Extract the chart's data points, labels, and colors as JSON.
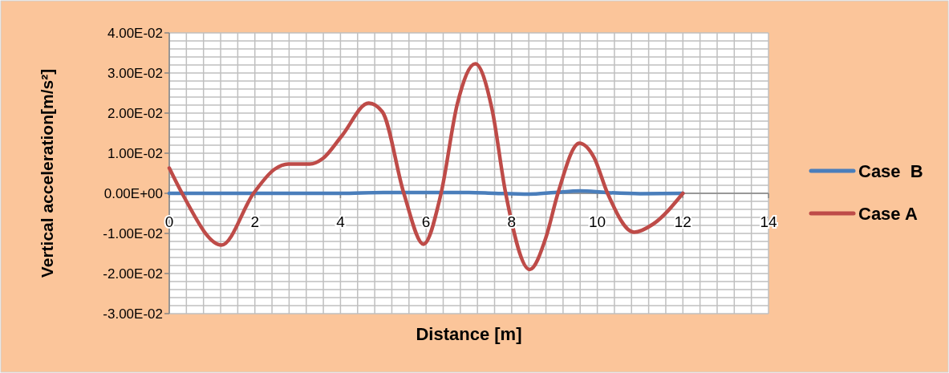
{
  "chart_data": {
    "type": "line",
    "xlabel": "Distance [m]",
    "ylabel": "Vertical acceleration[m/s²]",
    "xlim": [
      0,
      14
    ],
    "xticks": [
      0,
      {
        "value": 0.4,
        "label": null
      },
      {
        "value": 0.8,
        "label": null
      },
      {
        "value": 1.2,
        "label": null
      },
      {
        "value": 1.6,
        "label": null
      },
      2,
      {
        "value": 2.4,
        "label": null
      },
      {
        "value": 2.8,
        "label": null
      },
      {
        "value": 3.2,
        "label": null
      },
      {
        "value": 3.6,
        "label": null
      },
      4,
      {
        "value": 4.4,
        "label": null
      },
      {
        "value": 4.8,
        "label": null
      },
      {
        "value": 5.2,
        "label": null
      },
      {
        "value": 5.6,
        "label": null
      },
      6,
      {
        "value": 6.4,
        "label": null
      },
      {
        "value": 6.8,
        "label": null
      },
      {
        "value": 7.2,
        "label": null
      },
      {
        "value": 7.6,
        "label": null
      },
      8,
      {
        "value": 8.4,
        "label": null
      },
      {
        "value": 8.8,
        "label": null
      },
      {
        "value": 9.2,
        "label": null
      },
      {
        "value": 9.6,
        "label": null
      },
      10,
      {
        "value": 10.4,
        "label": null
      },
      {
        "value": 10.8,
        "label": null
      },
      {
        "value": 11.2,
        "label": null
      },
      {
        "value": 11.6,
        "label": null
      },
      12,
      {
        "value": 12.4,
        "label": null
      },
      {
        "value": 12.8,
        "label": null
      },
      {
        "value": 13.2,
        "label": null
      },
      {
        "value": 13.6,
        "label": null
      },
      14
    ],
    "ylim": [
      -0.03,
      0.04
    ],
    "yticks": [
      {
        "value": -0.03,
        "label": "-3.00E-02"
      },
      {
        "value": -0.028,
        "label": null
      },
      {
        "value": -0.026,
        "label": null
      },
      {
        "value": -0.024,
        "label": null
      },
      {
        "value": -0.022,
        "label": null
      },
      {
        "value": -0.02,
        "label": "-2.00E-02"
      },
      {
        "value": -0.018,
        "label": null
      },
      {
        "value": -0.016,
        "label": null
      },
      {
        "value": -0.014,
        "label": null
      },
      {
        "value": -0.012,
        "label": null
      },
      {
        "value": -0.01,
        "label": "-1.00E-02"
      },
      {
        "value": -0.008,
        "label": null
      },
      {
        "value": -0.006,
        "label": null
      },
      {
        "value": -0.004,
        "label": null
      },
      {
        "value": -0.002,
        "label": null
      },
      {
        "value": 0,
        "label": "0.00E+00"
      },
      {
        "value": 0.002,
        "label": null
      },
      {
        "value": 0.004,
        "label": null
      },
      {
        "value": 0.006,
        "label": null
      },
      {
        "value": 0.008,
        "label": null
      },
      {
        "value": 0.01,
        "label": "1.00E-02"
      },
      {
        "value": 0.012,
        "label": null
      },
      {
        "value": 0.014,
        "label": null
      },
      {
        "value": 0.016,
        "label": null
      },
      {
        "value": 0.018,
        "label": null
      },
      {
        "value": 0.02,
        "label": "2.00E-02"
      },
      {
        "value": 0.022,
        "label": null
      },
      {
        "value": 0.024,
        "label": null
      },
      {
        "value": 0.026,
        "label": null
      },
      {
        "value": 0.028,
        "label": null
      },
      {
        "value": 0.03,
        "label": "3.00E-02"
      },
      {
        "value": 0.032,
        "label": null
      },
      {
        "value": 0.034,
        "label": null
      },
      {
        "value": 0.036,
        "label": null
      },
      {
        "value": 0.038,
        "label": null
      },
      {
        "value": 0.04,
        "label": "4.00E-02"
      }
    ],
    "grid": true,
    "legend": "right",
    "marker": "none",
    "line_style": "solid",
    "series": [
      {
        "name": "Case  B",
        "color": "#4a7ebb",
        "x": [
          0,
          1,
          2,
          3,
          4,
          5,
          6,
          7,
          7.6,
          8.4,
          9,
          9.6,
          10.2,
          11,
          12
        ],
        "values": [
          0,
          0,
          0,
          0,
          0,
          0.0002,
          0.0002,
          0.0002,
          0,
          -0.0002,
          0.0002,
          0.0006,
          0.0002,
          -0.0001,
          0
        ]
      },
      {
        "name": "Case A",
        "color": "#be4b48",
        "x": [
          0,
          0.3,
          1.22,
          1.97,
          2.46,
          2.78,
          3.28,
          3.59,
          4.03,
          4.66,
          4.98,
          5.48,
          5.94,
          6.35,
          6.73,
          7.15,
          7.54,
          7.86,
          8.42,
          8.8,
          9.08,
          9.58,
          9.92,
          10.24,
          10.86,
          11.3,
          12
        ],
        "values": [
          0.0063,
          0,
          -0.0129,
          0,
          0.006,
          0.0073,
          0.0073,
          0.0087,
          0.0143,
          0.0225,
          0.0203,
          0,
          -0.0127,
          0,
          0.0223,
          0.0323,
          0.021,
          0,
          -0.019,
          -0.011,
          0,
          0.0125,
          0.009,
          0,
          -0.0097,
          -0.0077,
          0
        ]
      }
    ]
  }
}
